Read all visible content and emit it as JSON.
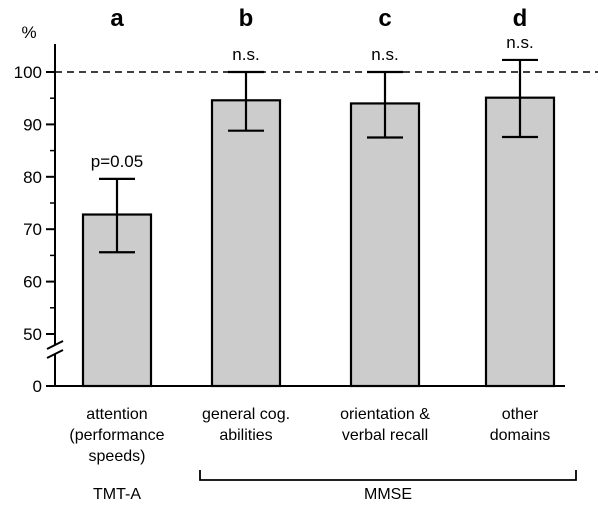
{
  "chart_data": {
    "type": "bar",
    "y_unit_label": "%",
    "y_ticks": [
      "0",
      "50",
      "60",
      "70",
      "80",
      "90",
      "100"
    ],
    "y_axis_break": true,
    "ylim": [
      45,
      105
    ],
    "reference_line": {
      "value": 100,
      "style": "dashed"
    },
    "bar_color": "#cccccc",
    "bars": [
      {
        "panel": "a",
        "label_lines": [
          "attention",
          "(performance",
          "speeds)"
        ],
        "value": 72.8,
        "err_low": 65.6,
        "err_high": 79.6,
        "annotation": "p=0.05"
      },
      {
        "panel": "b",
        "label_lines": [
          "general cog.",
          "abilities"
        ],
        "value": 94.6,
        "err_low": 88.8,
        "err_high": 100.0,
        "annotation": "n.s."
      },
      {
        "panel": "c",
        "label_lines": [
          "orientation &",
          "verbal recall"
        ],
        "value": 94.0,
        "err_low": 87.5,
        "err_high": 100.0,
        "annotation": "n.s."
      },
      {
        "panel": "d",
        "label_lines": [
          "other",
          "domains"
        ],
        "value": 95.1,
        "err_low": 87.6,
        "err_high": 102.3,
        "annotation": "n.s."
      }
    ],
    "groups": [
      {
        "label": "TMT-A",
        "bars": [
          0
        ]
      },
      {
        "label": "MMSE",
        "bars": [
          1,
          2,
          3
        ]
      }
    ]
  }
}
